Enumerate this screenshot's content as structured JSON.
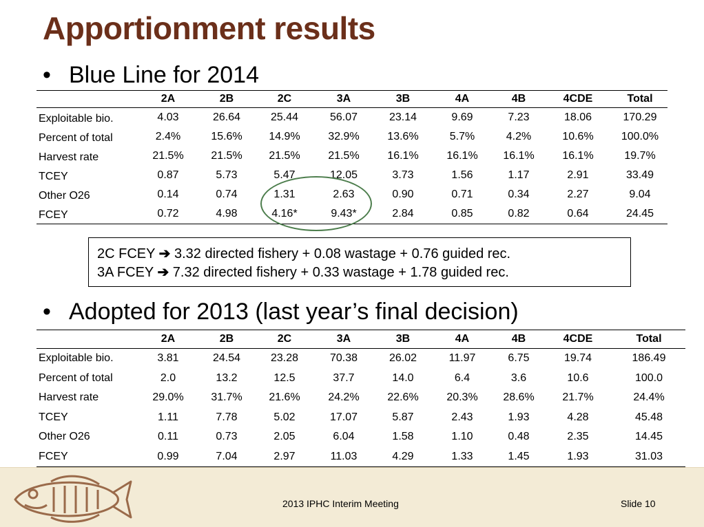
{
  "slide": {
    "title": "Apportionment results",
    "bullet1": "Blue Line for 2014",
    "bullet2": "Adopted for 2013 (last year’s final decision)",
    "bullet_glyph": "•"
  },
  "table2014": {
    "headers": [
      "",
      "2A",
      "2B",
      "2C",
      "3A",
      "3B",
      "4A",
      "4B",
      "4CDE",
      "Total"
    ],
    "rows": [
      {
        "label": "Exploitable bio.",
        "values": [
          "4.03",
          "26.64",
          "25.44",
          "56.07",
          "23.14",
          "9.69",
          "7.23",
          "18.06",
          "170.29"
        ]
      },
      {
        "label": "Percent of total",
        "values": [
          "2.4%",
          "15.6%",
          "14.9%",
          "32.9%",
          "13.6%",
          "5.7%",
          "4.2%",
          "10.6%",
          "100.0%"
        ]
      },
      {
        "label": "Harvest rate",
        "values": [
          "21.5%",
          "21.5%",
          "21.5%",
          "21.5%",
          "16.1%",
          "16.1%",
          "16.1%",
          "16.1%",
          "19.7%"
        ]
      },
      {
        "label": "TCEY",
        "values": [
          "0.87",
          "5.73",
          "5.47",
          "12.05",
          "3.73",
          "1.56",
          "1.17",
          "2.91",
          "33.49"
        ]
      },
      {
        "label": "Other O26",
        "values": [
          "0.14",
          "0.74",
          "1.31",
          "2.63",
          "0.90",
          "0.71",
          "0.34",
          "2.27",
          "9.04"
        ]
      },
      {
        "label": "FCEY",
        "values": [
          "0.72",
          "4.98",
          "4.16*",
          "9.43*",
          "2.84",
          "0.85",
          "0.82",
          "0.64",
          "24.45"
        ]
      }
    ]
  },
  "note": {
    "arrow": "➔",
    "line1_prefix": "2C FCEY",
    "line1_text": "3.32 directed fishery + 0.08 wastage + 0.76 guided rec.",
    "line2_prefix": "3A FCEY",
    "line2_text": "7.32 directed fishery + 0.33 wastage + 1.78 guided rec."
  },
  "table2013": {
    "headers": [
      "",
      "2A",
      "2B",
      "2C",
      "3A",
      "3B",
      "4A",
      "4B",
      "4CDE",
      "Total"
    ],
    "rows": [
      {
        "label": "Exploitable bio.",
        "values": [
          "3.81",
          "24.54",
          "23.28",
          "70.38",
          "26.02",
          "11.97",
          "6.75",
          "19.74",
          "186.49"
        ]
      },
      {
        "label": "Percent of total",
        "values": [
          "2.0",
          "13.2",
          "12.5",
          "37.7",
          "14.0",
          "6.4",
          "3.6",
          "10.6",
          "100.0"
        ]
      },
      {
        "label": "Harvest rate",
        "values": [
          "29.0%",
          "31.7%",
          "21.6%",
          "24.2%",
          "22.6%",
          "20.3%",
          "28.6%",
          "21.7%",
          "24.4%"
        ]
      },
      {
        "label": "TCEY",
        "values": [
          "1.11",
          "7.78",
          "5.02",
          "17.07",
          "5.87",
          "2.43",
          "1.93",
          "4.28",
          "45.48"
        ]
      },
      {
        "label": "Other O26",
        "values": [
          "0.11",
          "0.73",
          "2.05",
          "6.04",
          "1.58",
          "1.10",
          "0.48",
          "2.35",
          "14.45"
        ]
      },
      {
        "label": "FCEY",
        "values": [
          "0.99",
          "7.04",
          "2.97",
          "11.03",
          "4.29",
          "1.33",
          "1.45",
          "1.93",
          "31.03"
        ]
      }
    ]
  },
  "footer": {
    "meeting": "2013 IPHC Interim Meeting",
    "slide_number": "Slide 10",
    "logo_icon": "halibut-fish-icon"
  },
  "colors": {
    "title": "#6b2f1a",
    "highlight_circle": "#4c7d4c",
    "footer_bg": "#f3ebd6",
    "logo_stroke": "#9a6a4a"
  }
}
